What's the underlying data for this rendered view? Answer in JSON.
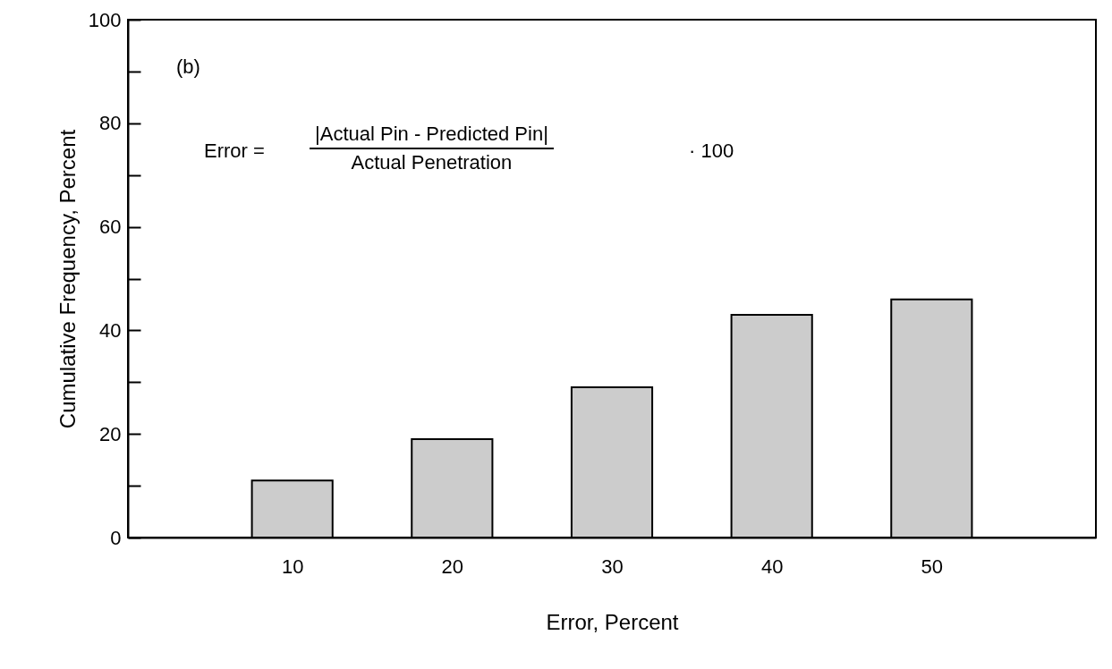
{
  "chart_data": {
    "type": "bar",
    "xlabel": "Error, Percent",
    "ylabel": "Cumulative Frequency, Percent",
    "x": [
      10,
      20,
      30,
      40,
      50
    ],
    "values": [
      11,
      19,
      29,
      43,
      46
    ],
    "color": "#cccccc",
    "xlim": [
      0,
      60
    ],
    "xticks": [
      10,
      20,
      30,
      40,
      50
    ],
    "ylim": [
      0,
      100
    ],
    "yticks": [
      0,
      {
        "value": 10,
        "label": null
      },
      20,
      {
        "value": 30,
        "label": null
      },
      40,
      {
        "value": 50,
        "label": null
      },
      60,
      {
        "value": 70,
        "label": null
      },
      80,
      {
        "value": 90,
        "label": null
      },
      100
    ],
    "annotations": [
      "(b)",
      "Error =",
      "|Actual Pin - Predicted Pin|",
      "Actual Penetration",
      "· 100"
    ]
  }
}
